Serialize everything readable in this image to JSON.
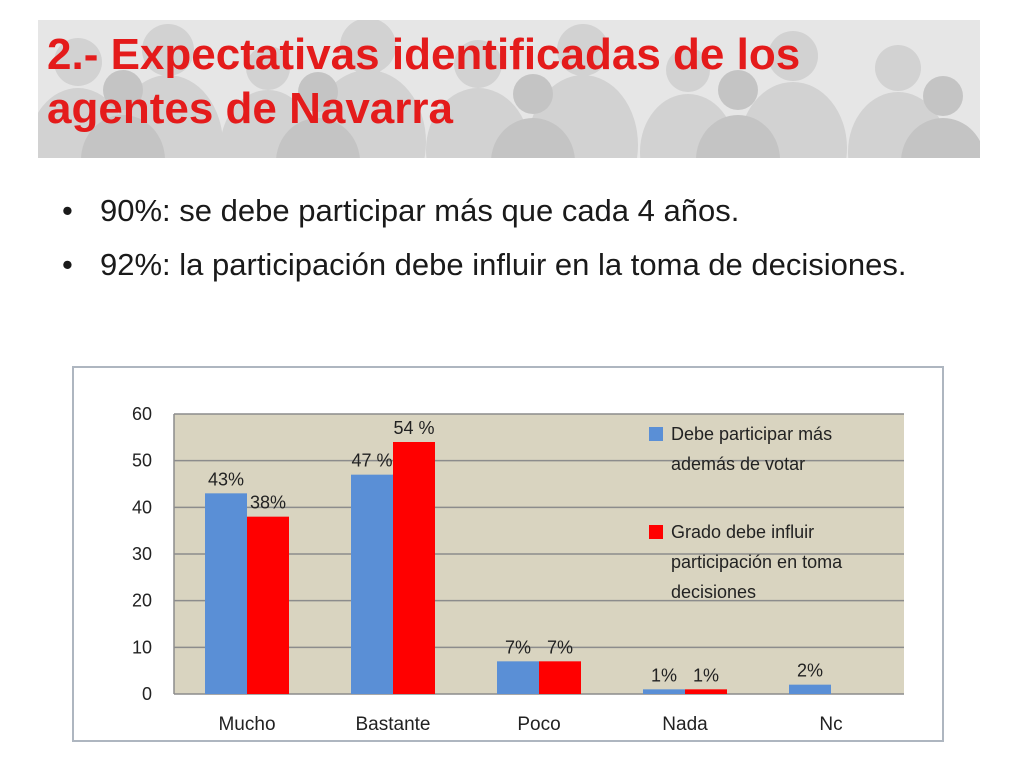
{
  "slide": {
    "title": "2.- Expectativas identificadas de los agentes de Navarra",
    "bullets": [
      "90%: se debe participar más que cada 4 años.",
      "92%: la participación debe influir en la toma de decisiones."
    ],
    "bullet_symbol": "•",
    "title_color": "#e41b1b"
  },
  "chart_data": {
    "type": "bar",
    "categories": [
      "Mucho",
      "Bastante",
      "Poco",
      "Nada",
      "Nc"
    ],
    "series": [
      {
        "name": "Debe participar más además de votar",
        "legend_lines": [
          "Debe participar más",
          "además de votar"
        ],
        "color": "#5a8fd6",
        "values": [
          43,
          47,
          7,
          1,
          2
        ],
        "labels": [
          "43%",
          "47 %",
          "7%",
          "1%",
          "2%"
        ]
      },
      {
        "name": "Grado debe influir participación en toma decisiones",
        "legend_lines": [
          "Grado debe influir",
          "participación en toma",
          "decisiones"
        ],
        "color": "#ff0000",
        "values": [
          38,
          54,
          7,
          1,
          null
        ],
        "labels": [
          "38%",
          "54 %",
          "7%",
          "1%",
          null
        ]
      }
    ],
    "yticks": [
      "0",
      "10",
      "20",
      "30",
      "40",
      "50",
      "60"
    ],
    "ylim": [
      0,
      60
    ],
    "grid": true,
    "plot_background": "#d9d4c0",
    "legend_position": "top-right"
  }
}
